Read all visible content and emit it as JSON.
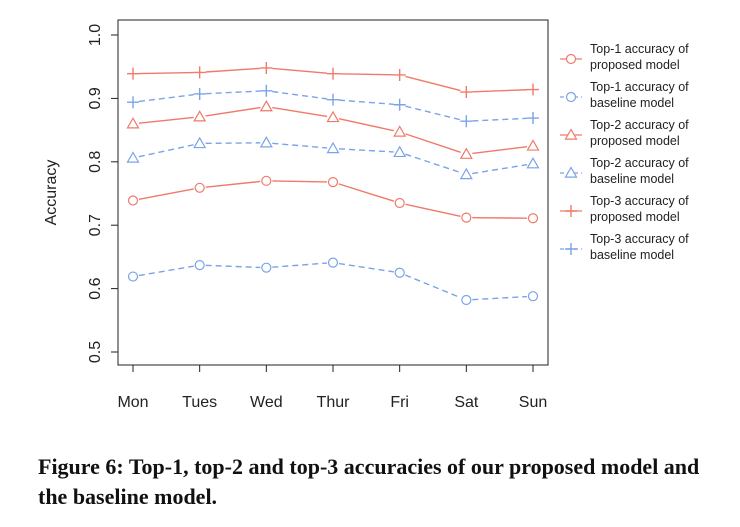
{
  "caption": "Figure 6: Top-1, top-2 and top-3 accuracies of our proposed model and the baseline model.",
  "colors": {
    "proposed": "#f07a6a",
    "baseline": "#7aa3e8",
    "axis": "#222222"
  },
  "chart_data": {
    "type": "line",
    "title": "",
    "xlabel": "",
    "ylabel": "Accuracy",
    "ylim": [
      0.5,
      1.0
    ],
    "yticks": [
      "0.5",
      "0.6",
      "0.7",
      "0.8",
      "0.9",
      "1.0"
    ],
    "categories": [
      "Mon",
      "Tues",
      "Wed",
      "Thur",
      "Fri",
      "Sat",
      "Sun"
    ],
    "grid": false,
    "legend_position": "right",
    "series": [
      {
        "name": "Top-1 accuracy of proposed model",
        "legend_lines": [
          "Top-1 accuracy of",
          "proposed model"
        ],
        "marker": "circle",
        "style": "solid",
        "color_key": "proposed",
        "values": [
          0.739,
          0.759,
          0.77,
          0.768,
          0.735,
          0.712,
          0.711
        ]
      },
      {
        "name": "Top-1 accuracy of baseline model",
        "legend_lines": [
          "Top-1 accuracy of",
          "baseline model"
        ],
        "marker": "circle",
        "style": "dashed",
        "color_key": "baseline",
        "values": [
          0.619,
          0.637,
          0.633,
          0.641,
          0.625,
          0.582,
          0.588
        ]
      },
      {
        "name": "Top-2 accuracy of proposed model",
        "legend_lines": [
          "Top-2 accuracy of",
          "proposed model"
        ],
        "marker": "triangle",
        "style": "solid",
        "color_key": "proposed",
        "values": [
          0.86,
          0.871,
          0.887,
          0.87,
          0.847,
          0.812,
          0.825
        ]
      },
      {
        "name": "Top-2 accuracy of baseline model",
        "legend_lines": [
          "Top-2 accuracy of",
          "baseline model"
        ],
        "marker": "triangle",
        "style": "dashed",
        "color_key": "baseline",
        "values": [
          0.806,
          0.829,
          0.83,
          0.821,
          0.815,
          0.78,
          0.797
        ]
      },
      {
        "name": "Top-3 accuracy of proposed model",
        "legend_lines": [
          "Top-3 accuracy of",
          "proposed model"
        ],
        "marker": "plus",
        "style": "solid",
        "color_key": "proposed",
        "values": [
          0.939,
          0.941,
          0.948,
          0.939,
          0.937,
          0.91,
          0.914
        ]
      },
      {
        "name": "Top-3 accuracy of baseline model",
        "legend_lines": [
          "Top-3 accuracy of",
          "baseline model"
        ],
        "marker": "plus",
        "style": "dashed",
        "color_key": "baseline",
        "values": [
          0.894,
          0.907,
          0.912,
          0.898,
          0.89,
          0.864,
          0.869
        ]
      }
    ]
  }
}
